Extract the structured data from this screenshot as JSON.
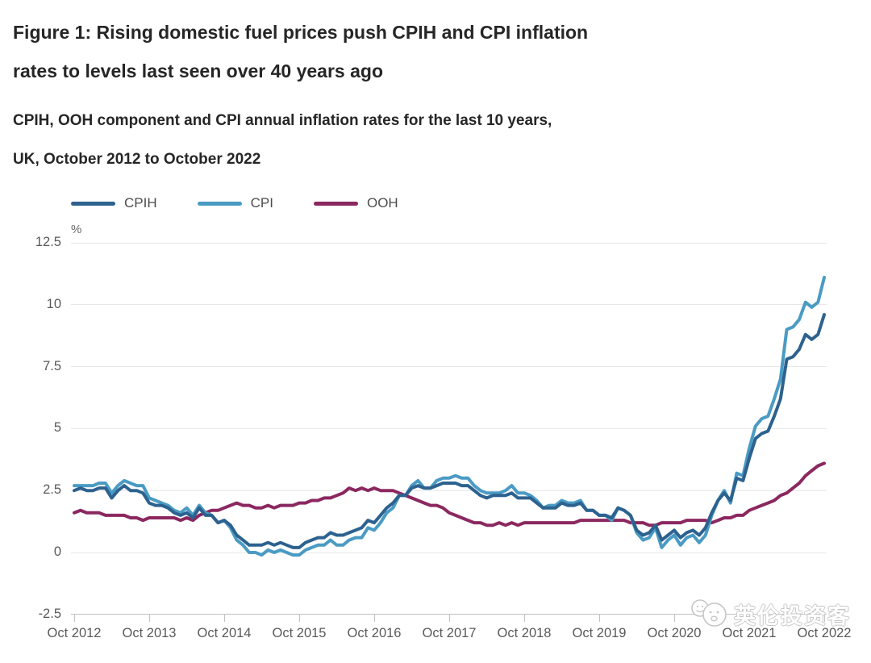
{
  "header": {
    "title_lines": [
      "Figure 1: Rising domestic fuel prices push CPIH and CPI inflation",
      "rates to levels last seen over 40 years ago"
    ],
    "subtitle_lines": [
      "CPIH, OOH component and CPI annual inflation rates for the last 10 years,",
      "UK, October 2012 to October 2022"
    ]
  },
  "watermark": {
    "text": "英伦投资客",
    "icon": "double-smiley-icon"
  },
  "chart_data": {
    "type": "line",
    "unit_label": "%",
    "frequency": "monthly",
    "x_start": "Oct 2012",
    "x_end": "Oct 2022",
    "x_tick_labels": [
      "Oct 2012",
      "Oct 2013",
      "Oct 2014",
      "Oct 2015",
      "Oct 2016",
      "Oct 2017",
      "Oct 2018",
      "Oct 2019",
      "Oct 2020",
      "Oct 2021",
      "Oct 2022"
    ],
    "y_ticks": [
      12.5,
      10,
      7.5,
      5,
      2.5,
      0,
      -2.5
    ],
    "y_tick_labels": [
      "12.5",
      "10",
      "7.5",
      "5",
      "2.5",
      "0",
      "-2.5"
    ],
    "ylim": [
      -2.5,
      12.5
    ],
    "grid": "horizontal",
    "legend_position": "top",
    "colors": {
      "cpih": "#2D628F",
      "cpi": "#4A9BC4",
      "ooh": "#8B2860"
    },
    "series": [
      {
        "name": "CPIH",
        "color": "#2D628F",
        "values": [
          2.5,
          2.6,
          2.5,
          2.5,
          2.6,
          2.6,
          2.2,
          2.5,
          2.7,
          2.5,
          2.5,
          2.4,
          2.0,
          1.9,
          1.9,
          1.8,
          1.6,
          1.5,
          1.6,
          1.4,
          1.8,
          1.5,
          1.5,
          1.2,
          1.3,
          1.1,
          0.7,
          0.5,
          0.3,
          0.3,
          0.3,
          0.4,
          0.3,
          0.4,
          0.3,
          0.2,
          0.2,
          0.4,
          0.5,
          0.6,
          0.6,
          0.8,
          0.7,
          0.7,
          0.8,
          0.9,
          1.0,
          1.3,
          1.2,
          1.5,
          1.8,
          2.0,
          2.3,
          2.3,
          2.6,
          2.7,
          2.6,
          2.6,
          2.7,
          2.8,
          2.8,
          2.8,
          2.7,
          2.7,
          2.5,
          2.3,
          2.2,
          2.3,
          2.3,
          2.3,
          2.4,
          2.2,
          2.2,
          2.2,
          2.0,
          1.8,
          1.8,
          1.8,
          2.0,
          1.9,
          1.9,
          2.0,
          1.7,
          1.7,
          1.5,
          1.5,
          1.4,
          1.8,
          1.7,
          1.5,
          0.9,
          0.7,
          0.8,
          1.1,
          0.5,
          0.7,
          0.9,
          0.6,
          0.8,
          0.9,
          0.7,
          1.0,
          1.6,
          2.1,
          2.4,
          2.1,
          3.0,
          2.9,
          3.8,
          4.6,
          4.8,
          4.9,
          5.5,
          6.2,
          7.8,
          7.9,
          8.2,
          8.8,
          8.6,
          8.8,
          9.6
        ]
      },
      {
        "name": "CPI",
        "color": "#4A9BC4",
        "values": [
          2.7,
          2.7,
          2.7,
          2.7,
          2.8,
          2.8,
          2.4,
          2.7,
          2.9,
          2.8,
          2.7,
          2.7,
          2.2,
          2.1,
          2.0,
          1.9,
          1.7,
          1.6,
          1.8,
          1.5,
          1.9,
          1.6,
          1.5,
          1.2,
          1.3,
          1.0,
          0.5,
          0.3,
          0.0,
          0.0,
          -0.1,
          0.1,
          0.0,
          0.1,
          0.0,
          -0.1,
          -0.1,
          0.1,
          0.2,
          0.3,
          0.3,
          0.5,
          0.3,
          0.3,
          0.5,
          0.6,
          0.6,
          1.0,
          0.9,
          1.2,
          1.6,
          1.8,
          2.3,
          2.3,
          2.7,
          2.9,
          2.6,
          2.6,
          2.9,
          3.0,
          3.0,
          3.1,
          3.0,
          3.0,
          2.7,
          2.5,
          2.4,
          2.4,
          2.4,
          2.5,
          2.7,
          2.4,
          2.4,
          2.3,
          2.1,
          1.8,
          1.9,
          1.9,
          2.1,
          2.0,
          2.0,
          2.1,
          1.7,
          1.7,
          1.5,
          1.5,
          1.3,
          1.8,
          1.7,
          1.5,
          0.8,
          0.5,
          0.6,
          1.0,
          0.2,
          0.5,
          0.7,
          0.3,
          0.6,
          0.7,
          0.4,
          0.7,
          1.5,
          2.1,
          2.5,
          2.0,
          3.2,
          3.1,
          4.2,
          5.1,
          5.4,
          5.5,
          6.2,
          7.0,
          9.0,
          9.1,
          9.4,
          10.1,
          9.9,
          10.1,
          11.1
        ]
      },
      {
        "name": "OOH",
        "color": "#8B2860",
        "values": [
          1.6,
          1.7,
          1.6,
          1.6,
          1.6,
          1.5,
          1.5,
          1.5,
          1.5,
          1.4,
          1.4,
          1.3,
          1.4,
          1.4,
          1.4,
          1.4,
          1.4,
          1.3,
          1.4,
          1.3,
          1.5,
          1.6,
          1.7,
          1.7,
          1.8,
          1.9,
          2.0,
          1.9,
          1.9,
          1.8,
          1.8,
          1.9,
          1.8,
          1.9,
          1.9,
          1.9,
          2.0,
          2.0,
          2.1,
          2.1,
          2.2,
          2.2,
          2.3,
          2.4,
          2.6,
          2.5,
          2.6,
          2.5,
          2.6,
          2.5,
          2.5,
          2.5,
          2.4,
          2.3,
          2.2,
          2.1,
          2.0,
          1.9,
          1.9,
          1.8,
          1.6,
          1.5,
          1.4,
          1.3,
          1.2,
          1.2,
          1.1,
          1.1,
          1.2,
          1.1,
          1.2,
          1.1,
          1.2,
          1.2,
          1.2,
          1.2,
          1.2,
          1.2,
          1.2,
          1.2,
          1.2,
          1.3,
          1.3,
          1.3,
          1.3,
          1.3,
          1.3,
          1.3,
          1.3,
          1.2,
          1.2,
          1.2,
          1.1,
          1.1,
          1.2,
          1.2,
          1.2,
          1.2,
          1.3,
          1.3,
          1.3,
          1.3,
          1.2,
          1.3,
          1.4,
          1.4,
          1.5,
          1.5,
          1.7,
          1.8,
          1.9,
          2.0,
          2.1,
          2.3,
          2.4,
          2.6,
          2.8,
          3.1,
          3.3,
          3.5,
          3.6
        ]
      }
    ]
  }
}
